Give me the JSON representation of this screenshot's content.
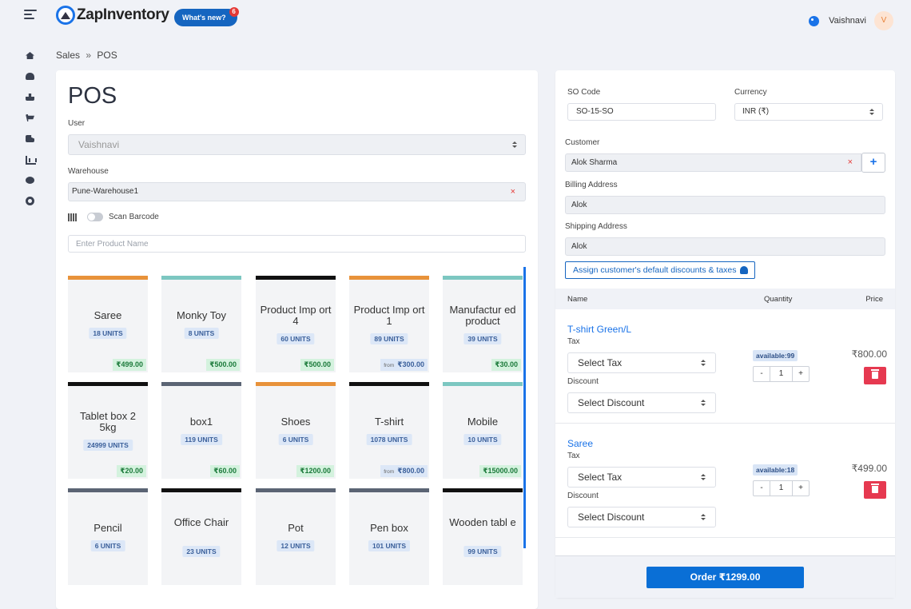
{
  "header": {
    "logo_text": "ZapInventory",
    "whats_new_label": "What's new?",
    "whats_new_count": "6",
    "user_name": "Vaishnavi",
    "avatar_initial": "V"
  },
  "sidebar": {
    "icons": [
      "home-icon",
      "users-icon",
      "boxes-icon",
      "cart-icon",
      "truck-icon",
      "chart-icon",
      "nav-icon",
      "gear-icon"
    ]
  },
  "breadcrumb": {
    "parent": "Sales",
    "separator": "»",
    "current": "POS"
  },
  "pos": {
    "title": "POS",
    "user_label": "User",
    "user_value": "Vaishnavi",
    "warehouse_label": "Warehouse",
    "warehouse_value": "Pune-Warehouse1",
    "clear_symbol": "×",
    "scan_barcode_label": "Scan Barcode",
    "product_search_placeholder": "Enter Product Name"
  },
  "products": [
    {
      "name": "Saree",
      "units": "18 UNITS",
      "price": "₹499.00",
      "from": false,
      "color": "#e8923a"
    },
    {
      "name": "Monky Toy",
      "units": "8 UNITS",
      "price": "₹500.00",
      "from": false,
      "color": "#7cc7c1"
    },
    {
      "name": "Product Imp ort 4",
      "units": "60 UNITS",
      "price": "₹500.00",
      "from": false,
      "color": "#111111"
    },
    {
      "name": "Product Imp ort 1",
      "units": "89 UNITS",
      "price": "₹300.00",
      "from": true,
      "color": "#e8923a"
    },
    {
      "name": "Manufactur ed product",
      "units": "39 UNITS",
      "price": "₹30.00",
      "from": false,
      "color": "#7cc7c1"
    },
    {
      "name": "Tablet box 2 5kg",
      "units": "24999 UNITS",
      "price": "₹20.00",
      "from": false,
      "color": "#111111"
    },
    {
      "name": "box1",
      "units": "119 UNITS",
      "price": "₹60.00",
      "from": false,
      "color": "#5b6474"
    },
    {
      "name": "Shoes",
      "units": "6 UNITS",
      "price": "₹1200.00",
      "from": false,
      "color": "#e8923a"
    },
    {
      "name": "T-shirt",
      "units": "1078 UNITS",
      "price": "₹800.00",
      "from": true,
      "color": "#111111"
    },
    {
      "name": "Mobile",
      "units": "10 UNITS",
      "price": "₹15000.00",
      "from": false,
      "color": "#7cc7c1"
    },
    {
      "name": "Pencil",
      "units": "6 UNITS",
      "price": "",
      "from": false,
      "color": "#5b6474"
    },
    {
      "name": "Office Chair",
      "units": "23 UNITS",
      "price": "",
      "from": false,
      "color": "#111111"
    },
    {
      "name": "Pot",
      "units": "12 UNITS",
      "price": "",
      "from": false,
      "color": "#5b6474"
    },
    {
      "name": "Pen box",
      "units": "101 UNITS",
      "price": "",
      "from": false,
      "color": "#5b6474"
    },
    {
      "name": "Wooden tabl e",
      "units": "99 UNITS",
      "price": "",
      "from": false,
      "color": "#111111"
    }
  ],
  "from_word": "from",
  "order": {
    "so_code_label": "SO Code",
    "so_code_value": "SO-15-SO",
    "currency_label": "Currency",
    "currency_value": "INR (₹)",
    "customer_label": "Customer",
    "customer_value": "Alok Sharma",
    "add_symbol": "+",
    "billing_label": "Billing Address",
    "billing_value": "Alok",
    "shipping_label": "Shipping Address",
    "shipping_value": "Alok",
    "assign_label": "Assign customer's default discounts & taxes",
    "col_name": "Name",
    "col_quantity": "Quantity",
    "col_price": "Price",
    "items": [
      {
        "name": "T-shirt Green/L",
        "tax_label": "Tax",
        "tax_value": "Select Tax",
        "discount_label": "Discount",
        "discount_value": "Select Discount",
        "available": "available:99",
        "qty": "1",
        "price": "₹800.00"
      },
      {
        "name": "Saree",
        "tax_label": "Tax",
        "tax_value": "Select Tax",
        "discount_label": "Discount",
        "discount_value": "Select Discount",
        "available": "available:18",
        "qty": "1",
        "price": "₹499.00"
      }
    ],
    "minus_symbol": "-",
    "plus_symbol": "+",
    "order_button_label": "Order ₹1299.00"
  }
}
